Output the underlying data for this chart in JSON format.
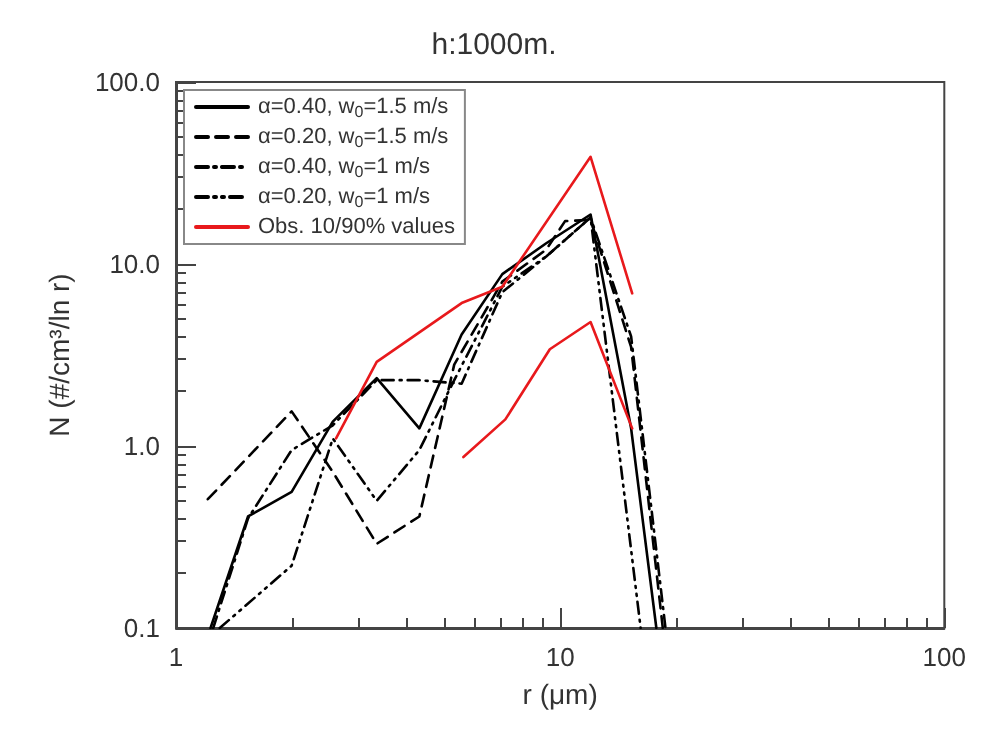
{
  "chart_data": {
    "type": "line",
    "title": "h:1000m.",
    "xlabel": "r (μm)",
    "ylabel": "N (#/cm³/ln r)",
    "log": "xy",
    "xlim": [
      1,
      100
    ],
    "xticks": [
      1,
      10,
      100
    ],
    "ylim": [
      0.1,
      100
    ],
    "yticks": [
      {
        "value": 0.1,
        "label": "0.1"
      },
      {
        "value": 1,
        "label": "1.0"
      },
      {
        "value": 10,
        "label": "10.0"
      },
      {
        "value": 100,
        "label": "100.0"
      }
    ],
    "grid": false,
    "legend": "top left",
    "marker": "none",
    "series": [
      {
        "name": "α=0.40, w$_{0}$=1.5 m/s",
        "color": "#000000",
        "line_style": "solid",
        "x": [
          1.23,
          1.54,
          2.0,
          2.56,
          3.33,
          4.3,
          5.54,
          7.07,
          9.2,
          12.0,
          15.3,
          17.8
        ],
        "values": [
          0.1,
          0.41,
          0.56,
          1.36,
          2.36,
          1.25,
          4.1,
          8.8,
          13,
          18.7,
          1.25,
          0.1
        ]
      },
      {
        "name": "α=0.20, w$_{0}$=1.5 m/s",
        "color": "#000000",
        "line_style": "dashed",
        "x": [
          1.21,
          2.0,
          2.56,
          3.33,
          4.3,
          5.3,
          7.07,
          9.2,
          10.3,
          12.0,
          15.3,
          18.5
        ],
        "values": [
          0.51,
          1.55,
          0.72,
          0.29,
          0.41,
          2.8,
          8.0,
          12,
          17.2,
          17.5,
          3.5,
          0.1
        ]
      },
      {
        "name": "α=0.40, w$_{0}$=1 m/s",
        "color": "#000000",
        "line_style": "dashdot",
        "x": [
          1.25,
          1.54,
          2.0,
          2.56,
          3.33,
          4.3,
          5.54,
          7.07,
          9.2,
          12.0,
          15.3,
          18.8
        ],
        "values": [
          0.1,
          0.4,
          0.95,
          1.3,
          2.3,
          2.3,
          2.2,
          7.0,
          11,
          18,
          4.0,
          0.1
        ]
      },
      {
        "name": "α=0.20, w$_{0}$=1 m/s",
        "color": "#000000",
        "line_style": "dashdotdot",
        "x": [
          1.3,
          2.0,
          2.56,
          3.33,
          4.3,
          5.3,
          7.07,
          9.2,
          12.0,
          16.2
        ],
        "values": [
          0.1,
          0.22,
          1.1,
          0.5,
          0.95,
          2.3,
          7.5,
          11,
          18,
          0.1
        ]
      },
      {
        "name": "Obs. 10/90% values",
        "color": "#e8191c",
        "line_style": "solid",
        "x": [
          2.61,
          3.33,
          5.54,
          7.07,
          12.0,
          15.4
        ],
        "values": [
          1.1,
          2.9,
          6.1,
          7.5,
          38.8,
          6.9
        ]
      },
      {
        "color": "#e8191c",
        "line_style": "solid",
        "x": [
          5.6,
          7.2,
          9.4,
          12.0,
          15.4
        ],
        "values": [
          0.87,
          1.4,
          3.4,
          4.8,
          1.25
        ]
      }
    ]
  }
}
